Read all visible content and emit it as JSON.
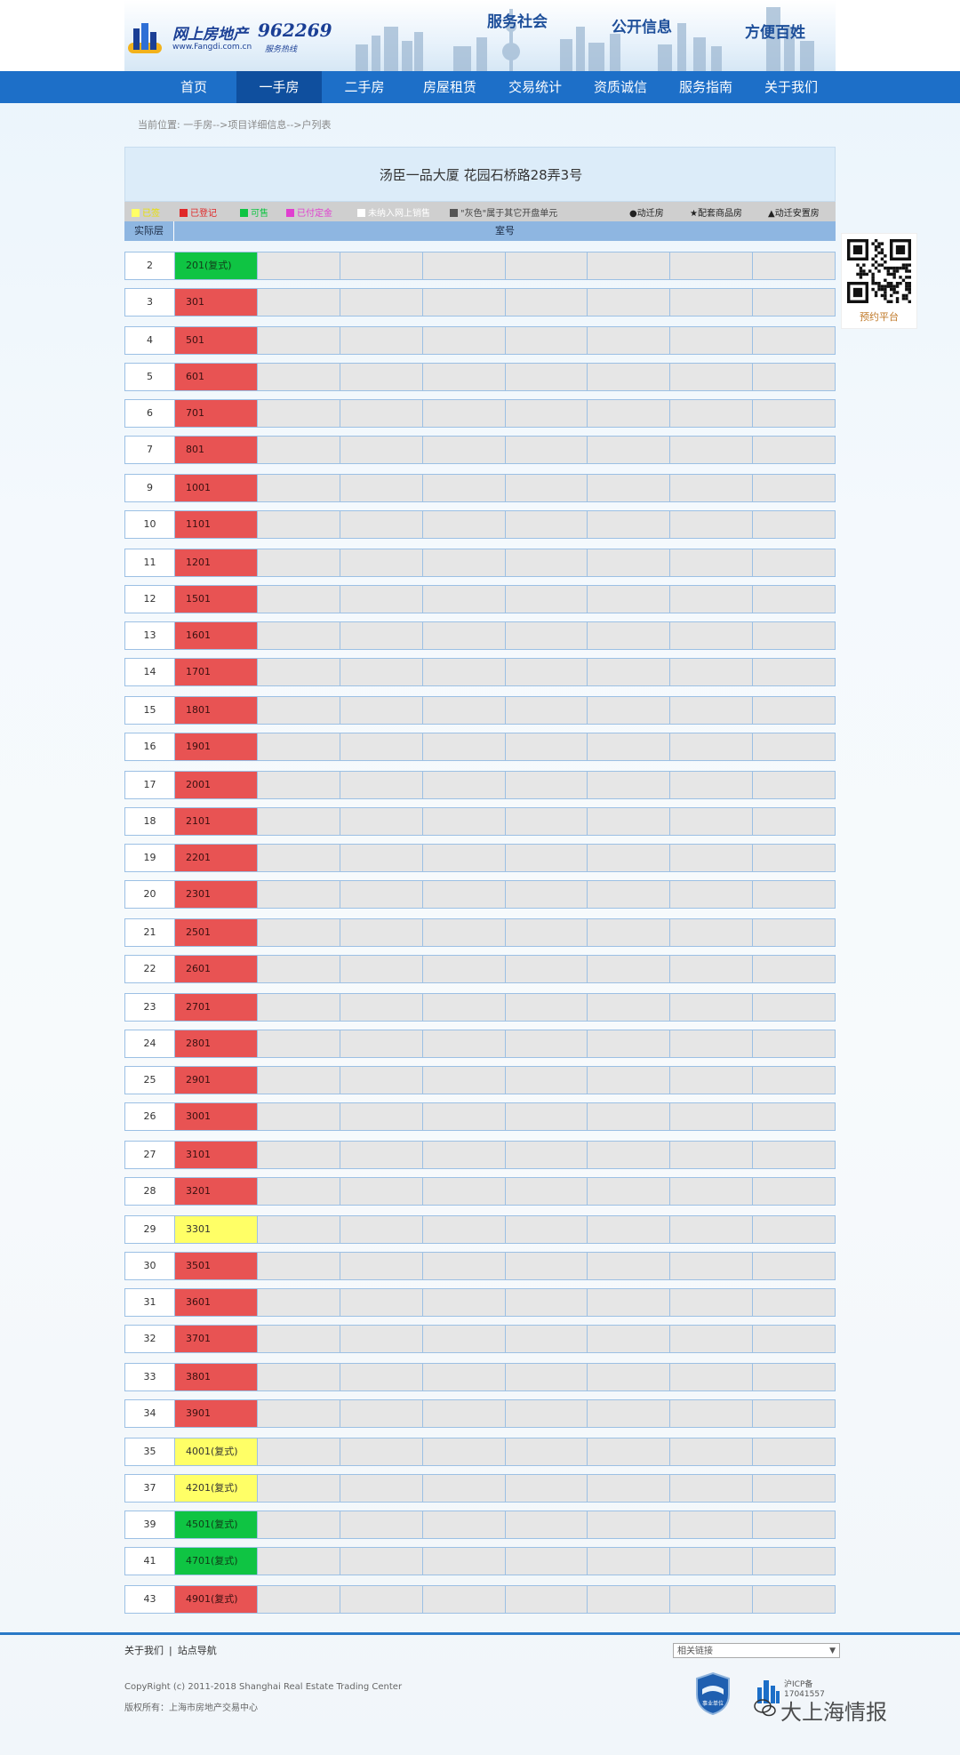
{
  "header": {
    "logo_text": "网上房地产",
    "logo_url": "www.Fangdi.com.cn",
    "hotline": "962269",
    "hotline_sub": "服务热线",
    "slogans": [
      "服务社会",
      "公开信息",
      "方便百姓"
    ]
  },
  "nav": {
    "items": [
      "首页",
      "一手房",
      "二手房",
      "房屋租赁",
      "交易统计",
      "资质诚信",
      "服务指南",
      "关于我们"
    ],
    "active_index": 1
  },
  "breadcrumb": "当前位置: 一手房-->项目详细信息-->户列表",
  "page_title": "汤臣一品大厦 花园石桥路28弄3号",
  "legend": {
    "items": [
      {
        "label": "已签",
        "color": "#ffff66",
        "text_color": "#e8e000"
      },
      {
        "label": "已登记",
        "color": "#e02828",
        "text_color": "#e02828"
      },
      {
        "label": "可售",
        "color": "#0fc443",
        "text_color": "#0fc443"
      },
      {
        "label": "已付定金",
        "color": "#e040d0",
        "text_color": "#e040d0"
      },
      {
        "label": "未纳入网上销售",
        "color": "#ffffff",
        "text_color": "#ffffff"
      },
      {
        "label": "\"灰色\"属于其它开盘单元",
        "color": "#555555",
        "text_color": "#444444"
      }
    ],
    "markers": [
      "●动迁房",
      "★配套商品房",
      "▲动迁安置房"
    ]
  },
  "table_header": {
    "floor": "实际层",
    "room": "室号"
  },
  "rows": [
    {
      "floor": "2",
      "room": "201(复式)",
      "status": "available"
    },
    {
      "floor": "3",
      "room": "301",
      "status": "sold"
    },
    {
      "floor": "4",
      "room": "501",
      "status": "sold"
    },
    {
      "floor": "5",
      "room": "601",
      "status": "sold"
    },
    {
      "floor": "6",
      "room": "701",
      "status": "sold"
    },
    {
      "floor": "7",
      "room": "801",
      "status": "sold"
    },
    {
      "floor": "9",
      "room": "1001",
      "status": "sold"
    },
    {
      "floor": "10",
      "room": "1101",
      "status": "sold"
    },
    {
      "floor": "11",
      "room": "1201",
      "status": "sold"
    },
    {
      "floor": "12",
      "room": "1501",
      "status": "sold"
    },
    {
      "floor": "13",
      "room": "1601",
      "status": "sold"
    },
    {
      "floor": "14",
      "room": "1701",
      "status": "sold"
    },
    {
      "floor": "15",
      "room": "1801",
      "status": "sold"
    },
    {
      "floor": "16",
      "room": "1901",
      "status": "sold"
    },
    {
      "floor": "17",
      "room": "2001",
      "status": "sold"
    },
    {
      "floor": "18",
      "room": "2101",
      "status": "sold"
    },
    {
      "floor": "19",
      "room": "2201",
      "status": "sold"
    },
    {
      "floor": "20",
      "room": "2301",
      "status": "sold"
    },
    {
      "floor": "21",
      "room": "2501",
      "status": "sold"
    },
    {
      "floor": "22",
      "room": "2601",
      "status": "sold"
    },
    {
      "floor": "23",
      "room": "2701",
      "status": "sold"
    },
    {
      "floor": "24",
      "room": "2801",
      "status": "sold"
    },
    {
      "floor": "25",
      "room": "2901",
      "status": "sold"
    },
    {
      "floor": "26",
      "room": "3001",
      "status": "sold"
    },
    {
      "floor": "27",
      "room": "3101",
      "status": "sold"
    },
    {
      "floor": "28",
      "room": "3201",
      "status": "sold"
    },
    {
      "floor": "29",
      "room": "3301",
      "status": "signed"
    },
    {
      "floor": "30",
      "room": "3501",
      "status": "sold"
    },
    {
      "floor": "31",
      "room": "3601",
      "status": "sold"
    },
    {
      "floor": "32",
      "room": "3701",
      "status": "sold"
    },
    {
      "floor": "33",
      "room": "3801",
      "status": "sold"
    },
    {
      "floor": "34",
      "room": "3901",
      "status": "sold"
    },
    {
      "floor": "35",
      "room": "4001(复式)",
      "status": "signed"
    },
    {
      "floor": "37",
      "room": "4201(复式)",
      "status": "signed"
    },
    {
      "floor": "39",
      "room": "4501(复式)",
      "status": "available"
    },
    {
      "floor": "41",
      "room": "4701(复式)",
      "status": "available"
    },
    {
      "floor": "43",
      "room": "4901(复式)",
      "status": "sold"
    }
  ],
  "qr": {
    "label": "预约平台"
  },
  "footer": {
    "links": [
      "关于我们",
      "站点导航"
    ],
    "select_value": "相关链接",
    "copyright": "CopyRight (c) 2011-2018 Shanghai Real Estate Trading Center",
    "owner": "版权所有：上海市房地产交易中心",
    "badge_text": "事业单位",
    "icp_lines": [
      "沪ICP备",
      "17041557"
    ]
  },
  "watermark": "大上海情报"
}
